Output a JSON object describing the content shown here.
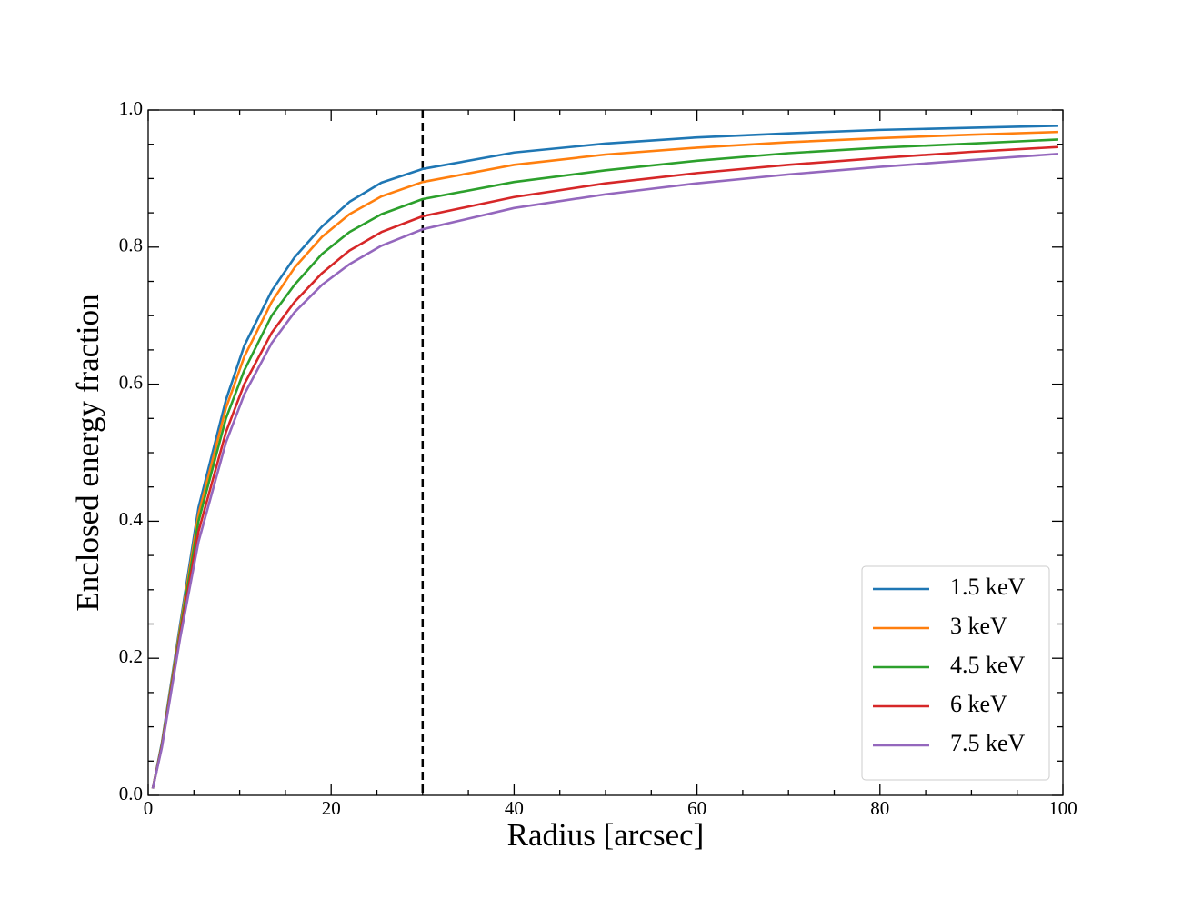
{
  "chart_data": {
    "type": "line",
    "xlabel": "Radius [arcsec]",
    "ylabel": "Enclosed energy fraction",
    "x": [
      0.5,
      1.5,
      3.5,
      5.5,
      8.5,
      10.5,
      13.5,
      16,
      19,
      22,
      25.5,
      30,
      40,
      50,
      60,
      70,
      80,
      90,
      99.5
    ],
    "series": [
      {
        "name": "1.5 keV",
        "color": "#1f77b4",
        "values": [
          0.01,
          0.077,
          0.25,
          0.42,
          0.577,
          0.656,
          0.736,
          0.785,
          0.83,
          0.866,
          0.894,
          0.914,
          0.938,
          0.951,
          0.96,
          0.966,
          0.971,
          0.974,
          0.977
        ]
      },
      {
        "name": "3 keV",
        "color": "#ff7f0e",
        "values": [
          0.01,
          0.075,
          0.245,
          0.41,
          0.565,
          0.64,
          0.72,
          0.77,
          0.815,
          0.848,
          0.874,
          0.895,
          0.92,
          0.935,
          0.945,
          0.953,
          0.959,
          0.964,
          0.968
        ]
      },
      {
        "name": "4.5 keV",
        "color": "#2ca02c",
        "values": [
          0.01,
          0.074,
          0.24,
          0.4,
          0.55,
          0.62,
          0.7,
          0.745,
          0.79,
          0.822,
          0.848,
          0.87,
          0.895,
          0.912,
          0.926,
          0.937,
          0.945,
          0.951,
          0.957
        ]
      },
      {
        "name": "6 keV",
        "color": "#d62728",
        "values": [
          0.01,
          0.072,
          0.235,
          0.385,
          0.53,
          0.6,
          0.675,
          0.72,
          0.762,
          0.795,
          0.822,
          0.845,
          0.873,
          0.893,
          0.908,
          0.92,
          0.93,
          0.939,
          0.946
        ]
      },
      {
        "name": "7.5 keV",
        "color": "#9467bd",
        "values": [
          0.01,
          0.07,
          0.23,
          0.37,
          0.515,
          0.585,
          0.66,
          0.705,
          0.745,
          0.775,
          0.802,
          0.826,
          0.857,
          0.877,
          0.893,
          0.906,
          0.917,
          0.927,
          0.936
        ]
      }
    ],
    "xlim": [
      0,
      100
    ],
    "ylim": [
      0,
      1
    ],
    "xticks": [
      0,
      20,
      40,
      60,
      80,
      100
    ],
    "yticks": [
      {
        "value": 0,
        "label": "0.0"
      },
      0.2,
      0.4,
      0.6,
      0.8,
      {
        "value": 1,
        "label": "1.0"
      }
    ],
    "xminorticks": [
      5,
      10,
      15,
      25,
      30,
      35,
      45,
      50,
      55,
      65,
      70,
      75,
      85,
      90,
      95
    ],
    "yminorticks": [
      0.05,
      0.1,
      0.15,
      0.25,
      0.3,
      0.35,
      0.45,
      0.5,
      0.55,
      0.65,
      0.7,
      0.75,
      0.85,
      0.9,
      0.95
    ],
    "vlines": [
      {
        "x": 30,
        "color": "#000000",
        "style": "dashed"
      }
    ],
    "legend": "lower right",
    "grid": false
  }
}
